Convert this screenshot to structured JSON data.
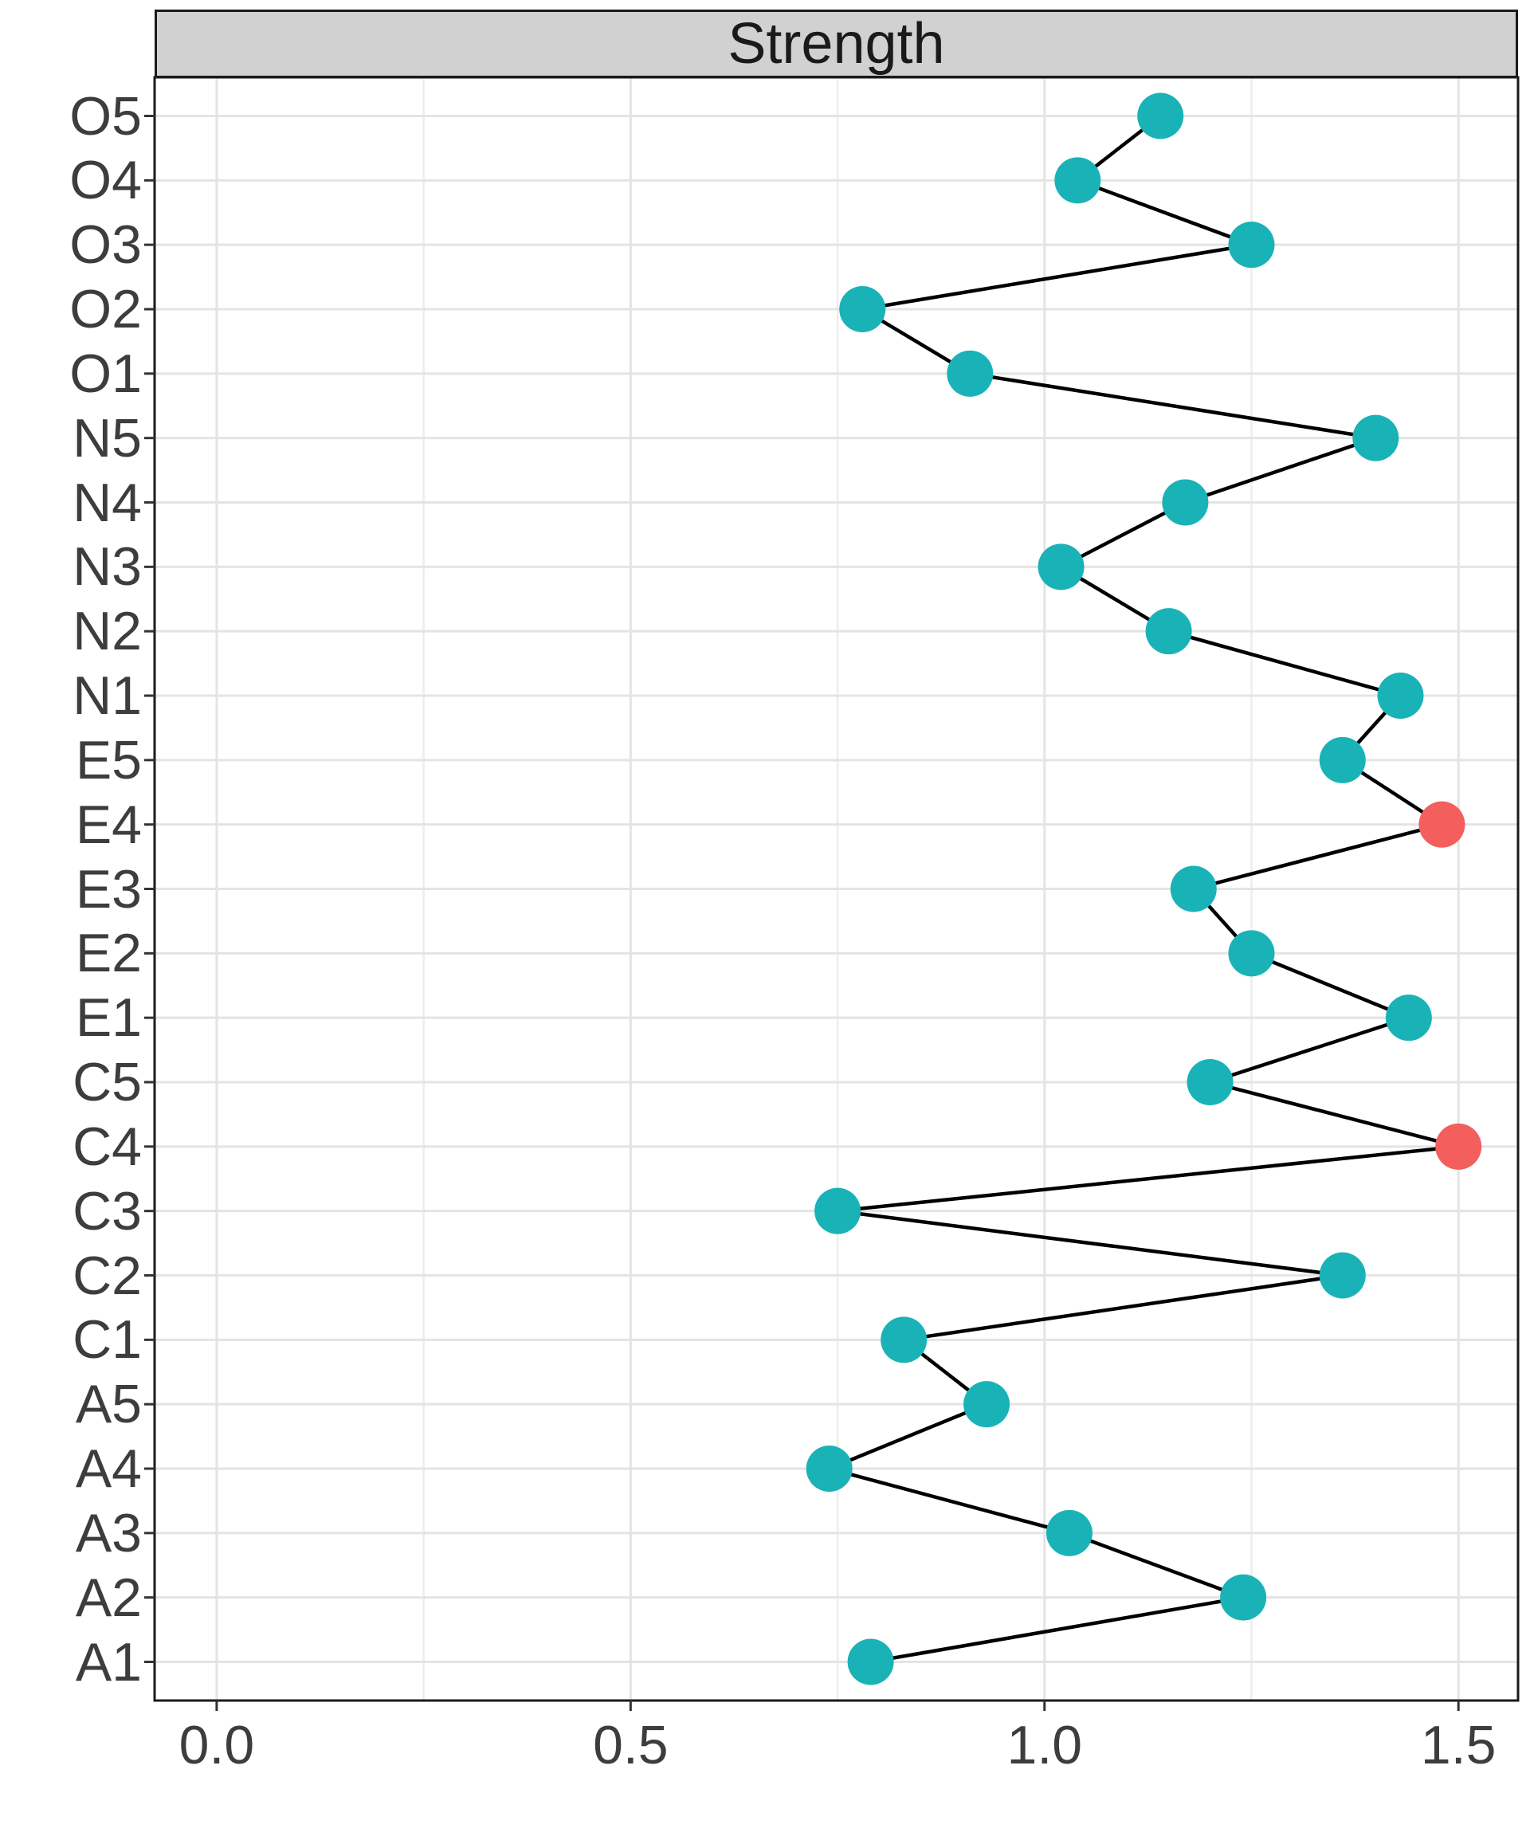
{
  "strip": {
    "title": "Strength"
  },
  "colors": {
    "point_default": "#19B3B7",
    "point_highlight": "#F25F5C",
    "line": "#000000",
    "strip_bg": "#D1D1D1",
    "panel_border": "#1A1A1A",
    "grid_major": "#E4E4E4",
    "grid_minor": "#EDEDED",
    "tick": "#333333",
    "tick_text": "#3D3D3D"
  },
  "chart_data": {
    "type": "scatter",
    "subtype": "dot-line-centrality",
    "orientation": "horizontal",
    "title": "Strength",
    "xlabel": "",
    "ylabel": "",
    "grid": true,
    "legend": false,
    "xlim": [
      -0.075,
      1.572
    ],
    "x_major_ticks": [
      0.0,
      0.5,
      1.0,
      1.5
    ],
    "x_tick_labels": [
      "0.0",
      "0.5",
      "1.0",
      "1.5"
    ],
    "x_gridline_step": 0.25,
    "categories_top_to_bottom": [
      "O5",
      "O4",
      "O3",
      "O2",
      "O1",
      "N5",
      "N4",
      "N3",
      "N2",
      "N1",
      "E5",
      "E4",
      "E3",
      "E2",
      "E1",
      "C5",
      "C4",
      "C3",
      "C2",
      "C1",
      "A5",
      "A4",
      "A3",
      "A2",
      "A1"
    ],
    "points": [
      {
        "label": "O5",
        "value": 1.14,
        "highlighted": false
      },
      {
        "label": "O4",
        "value": 1.04,
        "highlighted": false
      },
      {
        "label": "O3",
        "value": 1.25,
        "highlighted": false
      },
      {
        "label": "O2",
        "value": 0.78,
        "highlighted": false
      },
      {
        "label": "O1",
        "value": 0.91,
        "highlighted": false
      },
      {
        "label": "N5",
        "value": 1.4,
        "highlighted": false
      },
      {
        "label": "N4",
        "value": 1.17,
        "highlighted": false
      },
      {
        "label": "N3",
        "value": 1.02,
        "highlighted": false
      },
      {
        "label": "N2",
        "value": 1.15,
        "highlighted": false
      },
      {
        "label": "N1",
        "value": 1.43,
        "highlighted": false
      },
      {
        "label": "E5",
        "value": 1.36,
        "highlighted": false
      },
      {
        "label": "E4",
        "value": 1.48,
        "highlighted": true
      },
      {
        "label": "E3",
        "value": 1.18,
        "highlighted": false
      },
      {
        "label": "E2",
        "value": 1.25,
        "highlighted": false
      },
      {
        "label": "E1",
        "value": 1.44,
        "highlighted": false
      },
      {
        "label": "C5",
        "value": 1.2,
        "highlighted": false
      },
      {
        "label": "C4",
        "value": 1.5,
        "highlighted": true
      },
      {
        "label": "C3",
        "value": 0.75,
        "highlighted": false
      },
      {
        "label": "C2",
        "value": 1.36,
        "highlighted": false
      },
      {
        "label": "C1",
        "value": 0.83,
        "highlighted": false
      },
      {
        "label": "A5",
        "value": 0.93,
        "highlighted": false
      },
      {
        "label": "A4",
        "value": 0.74,
        "highlighted": false
      },
      {
        "label": "A3",
        "value": 1.03,
        "highlighted": false
      },
      {
        "label": "A2",
        "value": 1.24,
        "highlighted": false
      },
      {
        "label": "A1",
        "value": 0.79,
        "highlighted": false
      }
    ]
  }
}
